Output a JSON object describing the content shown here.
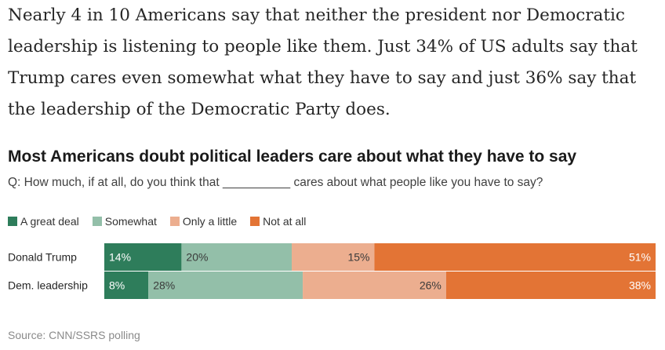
{
  "article": {
    "paragraph": "Nearly 4 in 10 Americans say that neither the president nor Democratic leadership is listening to people like them. Just 34% of US adults say that Trump cares even somewhat what they have to say and just 36% say that the leadership of the Democratic Party does."
  },
  "chart_data": {
    "type": "bar",
    "orientation": "horizontal",
    "stacked": true,
    "title": "Most Americans doubt political leaders care about what they have to say",
    "subtitle": "Q: How much, if at all, do you think that __________ cares about what people like you have to say?",
    "categories": [
      "Donald Trump",
      "Dem. leadership"
    ],
    "series": [
      {
        "name": "A great deal",
        "color": "#2e7d5b",
        "values": [
          14,
          8
        ],
        "labels": [
          "14%",
          "8%"
        ]
      },
      {
        "name": "Somewhat",
        "color": "#93bfa9",
        "values": [
          20,
          28
        ],
        "labels": [
          "20%",
          "28%"
        ]
      },
      {
        "name": "Only a little",
        "color": "#ecae8f",
        "values": [
          15,
          26
        ],
        "labels": [
          "15%",
          "26%"
        ]
      },
      {
        "name": "Not at all",
        "color": "#e37435",
        "values": [
          51,
          38
        ],
        "labels": [
          "51%",
          "38%"
        ]
      }
    ],
    "xlim": [
      0,
      100
    ],
    "legend_position": "top-left",
    "source": "Source: CNN/SSRS polling"
  }
}
